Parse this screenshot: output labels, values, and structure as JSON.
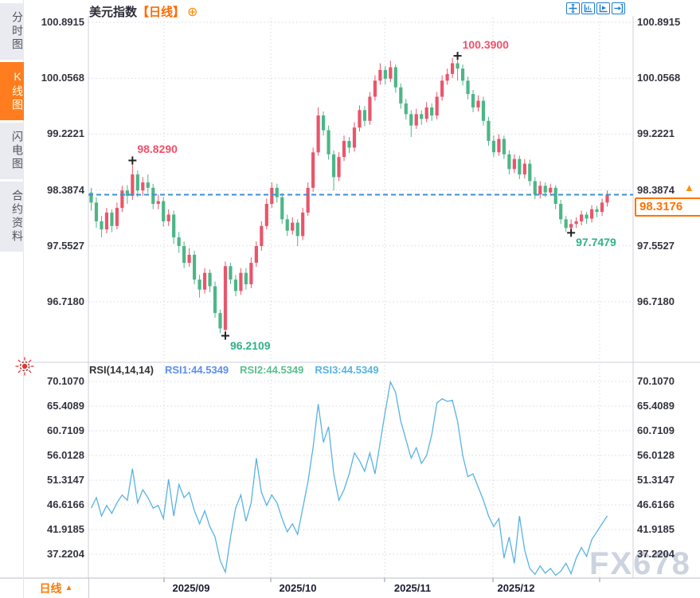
{
  "sidebar": {
    "items": [
      {
        "label": "分时图",
        "selected": false
      },
      {
        "label": "K线图",
        "selected": true
      },
      {
        "label": "闪电图",
        "selected": false
      },
      {
        "label": "合约资料",
        "selected": false
      }
    ]
  },
  "header": {
    "title": "美元指数",
    "period_tag": "【日线】",
    "add_icon": "⊕"
  },
  "toolbar": {
    "icons": [
      "crosshair-move",
      "axis-range",
      "axis-play",
      "pane-exit"
    ]
  },
  "main_chart": {
    "y_axis_labels": [
      "100.8915",
      "100.0568",
      "99.2221",
      "98.3874",
      "97.5527",
      "96.7180"
    ],
    "last_price": "98.3176",
    "axis_arrow": "▲",
    "ref_line_color": "#3e8ed8",
    "annotations": [
      {
        "text": "98.8290",
        "price": 98.829,
        "candle": 8,
        "color": "#f2506a",
        "side": "above"
      },
      {
        "text": "100.3900",
        "price": 100.39,
        "candle": 71,
        "color": "#f2506a",
        "side": "above"
      },
      {
        "text": "96.2109",
        "price": 96.2109,
        "candle": 26,
        "color": "#2fb286",
        "side": "below"
      },
      {
        "text": "97.7479",
        "price": 97.7479,
        "candle": 93,
        "color": "#2fb286",
        "side": "below"
      }
    ]
  },
  "rsi_panel": {
    "header_label": "RSI(14,14,14)",
    "series_labels": [
      {
        "text": "RSI1:44.5349",
        "color": "#5b8df0"
      },
      {
        "text": "RSI2:44.5349",
        "color": "#58c08d"
      },
      {
        "text": "RSI3:44.5349",
        "color": "#54b4e4"
      }
    ],
    "y_axis_labels": [
      "70.1070",
      "65.4089",
      "60.7109",
      "56.0128",
      "51.3147",
      "46.6166",
      "41.9185",
      "37.2204"
    ]
  },
  "bottom_bar": {
    "period_label": "日线",
    "arrow": "▲",
    "x_axis_labels": [
      "2025/09",
      "2025/10",
      "2025/11",
      "2025/12"
    ]
  },
  "watermark": "FX678",
  "chart_data": [
    {
      "type": "candlestick",
      "title": "美元指数 日线",
      "y_ticks": [
        "100.8915",
        "100.0568",
        "99.2221",
        "98.3874",
        "97.5527",
        "96.7180"
      ],
      "x_tick_labels": [
        "2025/09",
        "2025/10",
        "2025/11",
        "2025/12"
      ],
      "up_color": "#e8566b",
      "down_color": "#4db687",
      "last_close": 98.3176,
      "high_label": 100.39,
      "low_label": 96.2109,
      "candles": [
        [
          98.35,
          98.42,
          98.08,
          98.2
        ],
        [
          98.2,
          98.28,
          97.82,
          97.92
        ],
        [
          97.92,
          98.0,
          97.68,
          97.8
        ],
        [
          97.8,
          98.12,
          97.74,
          98.05
        ],
        [
          98.05,
          98.1,
          97.76,
          97.85
        ],
        [
          97.85,
          98.2,
          97.8,
          98.12
        ],
        [
          98.12,
          98.45,
          98.06,
          98.38
        ],
        [
          98.38,
          98.46,
          98.18,
          98.3
        ],
        [
          98.3,
          98.829,
          98.24,
          98.62
        ],
        [
          98.62,
          98.68,
          98.28,
          98.38
        ],
        [
          98.38,
          98.58,
          98.3,
          98.5
        ],
        [
          98.5,
          98.62,
          98.34,
          98.42
        ],
        [
          98.42,
          98.48,
          98.1,
          98.18
        ],
        [
          98.18,
          98.32,
          98.1,
          98.22
        ],
        [
          98.22,
          98.28,
          97.84,
          97.92
        ],
        [
          97.92,
          98.1,
          97.85,
          98.02
        ],
        [
          98.02,
          98.08,
          97.58,
          97.68
        ],
        [
          97.68,
          97.76,
          97.45,
          97.55
        ],
        [
          97.55,
          97.62,
          97.22,
          97.3
        ],
        [
          97.3,
          97.52,
          97.24,
          97.42
        ],
        [
          97.42,
          97.48,
          96.98,
          97.05
        ],
        [
          97.05,
          97.12,
          96.78,
          96.9
        ],
        [
          96.9,
          97.22,
          96.84,
          97.15
        ],
        [
          97.15,
          97.2,
          96.86,
          96.95
        ],
        [
          96.95,
          97.02,
          96.48,
          96.55
        ],
        [
          96.55,
          96.6,
          96.25,
          96.32
        ],
        [
          96.3,
          97.32,
          96.2109,
          97.25
        ],
        [
          97.25,
          97.3,
          96.98,
          97.05
        ],
        [
          97.05,
          97.12,
          96.8,
          96.88
        ],
        [
          96.88,
          97.22,
          96.82,
          97.15
        ],
        [
          97.15,
          97.22,
          96.9,
          96.98
        ],
        [
          96.98,
          97.38,
          96.92,
          97.3
        ],
        [
          97.3,
          97.62,
          97.24,
          97.55
        ],
        [
          97.55,
          97.92,
          97.48,
          97.85
        ],
        [
          97.85,
          98.26,
          97.8,
          98.18
        ],
        [
          98.18,
          98.5,
          98.12,
          98.42
        ],
        [
          98.42,
          98.48,
          98.2,
          98.28
        ],
        [
          98.28,
          98.34,
          97.88,
          97.95
        ],
        [
          97.95,
          98.02,
          97.7,
          97.78
        ],
        [
          97.78,
          97.98,
          97.72,
          97.9
        ],
        [
          97.9,
          97.95,
          97.55,
          97.7
        ],
        [
          97.7,
          98.12,
          97.64,
          98.05
        ],
        [
          98.05,
          98.5,
          98.0,
          98.42
        ],
        [
          98.42,
          99.02,
          98.36,
          98.95
        ],
        [
          98.95,
          99.62,
          98.9,
          99.5
        ],
        [
          99.5,
          99.56,
          99.2,
          99.28
        ],
        [
          99.28,
          99.35,
          98.84,
          98.92
        ],
        [
          98.92,
          98.98,
          98.38,
          98.58
        ],
        [
          98.58,
          98.95,
          98.52,
          98.88
        ],
        [
          98.88,
          99.2,
          98.82,
          99.12
        ],
        [
          99.12,
          99.18,
          98.94,
          99.02
        ],
        [
          99.02,
          99.4,
          98.96,
          99.32
        ],
        [
          99.32,
          99.65,
          99.26,
          99.58
        ],
        [
          99.58,
          99.64,
          99.34,
          99.42
        ],
        [
          99.42,
          99.85,
          99.36,
          99.78
        ],
        [
          99.78,
          100.1,
          99.72,
          100.02
        ],
        [
          100.02,
          100.28,
          99.96,
          100.18
        ],
        [
          100.18,
          100.24,
          99.96,
          100.05
        ],
        [
          100.05,
          100.32,
          100.0,
          100.22
        ],
        [
          100.22,
          100.26,
          99.84,
          99.92
        ],
        [
          99.92,
          99.98,
          99.6,
          99.68
        ],
        [
          99.68,
          99.75,
          99.44,
          99.52
        ],
        [
          99.52,
          99.58,
          99.18,
          99.35
        ],
        [
          99.35,
          99.6,
          99.3,
          99.52
        ],
        [
          99.52,
          99.58,
          99.36,
          99.45
        ],
        [
          99.45,
          99.7,
          99.4,
          99.62
        ],
        [
          99.62,
          99.68,
          99.42,
          99.5
        ],
        [
          99.5,
          99.85,
          99.44,
          99.78
        ],
        [
          99.78,
          100.1,
          99.72,
          100.02
        ],
        [
          100.02,
          100.2,
          99.96,
          100.12
        ],
        [
          100.12,
          100.36,
          100.06,
          100.28
        ],
        [
          100.28,
          100.39,
          100.02,
          100.2
        ],
        [
          100.2,
          100.26,
          99.95,
          100.02
        ],
        [
          100.02,
          100.08,
          99.74,
          99.82
        ],
        [
          99.82,
          99.88,
          99.55,
          99.62
        ],
        [
          99.62,
          99.8,
          99.56,
          99.72
        ],
        [
          99.72,
          99.78,
          99.35,
          99.42
        ],
        [
          99.42,
          99.48,
          99.05,
          99.12
        ],
        [
          99.12,
          99.2,
          98.88,
          98.95
        ],
        [
          98.95,
          99.22,
          98.9,
          99.15
        ],
        [
          99.15,
          99.2,
          98.85,
          98.92
        ],
        [
          98.92,
          98.98,
          98.62,
          98.7
        ],
        [
          98.7,
          98.92,
          98.64,
          98.85
        ],
        [
          98.85,
          98.9,
          98.55,
          98.62
        ],
        [
          98.62,
          98.85,
          98.56,
          98.78
        ],
        [
          98.78,
          98.84,
          98.45,
          98.52
        ],
        [
          98.52,
          98.58,
          98.25,
          98.32
        ],
        [
          98.32,
          98.52,
          98.26,
          98.45
        ],
        [
          98.45,
          98.5,
          98.28,
          98.35
        ],
        [
          98.35,
          98.48,
          98.3,
          98.42
        ],
        [
          98.42,
          98.46,
          98.1,
          98.18
        ],
        [
          98.18,
          98.24,
          97.88,
          97.95
        ],
        [
          97.95,
          98.0,
          97.76,
          97.82
        ],
        [
          97.82,
          97.95,
          97.7479,
          97.88
        ],
        [
          97.88,
          97.98,
          97.82,
          97.92
        ],
        [
          97.92,
          98.08,
          97.86,
          98.02
        ],
        [
          98.02,
          98.06,
          97.88,
          97.96
        ],
        [
          97.96,
          98.16,
          97.9,
          98.1
        ],
        [
          98.1,
          98.15,
          97.98,
          98.06
        ],
        [
          98.06,
          98.26,
          98.0,
          98.2
        ],
        [
          98.2,
          98.38,
          98.14,
          98.3176
        ]
      ]
    },
    {
      "type": "line",
      "name": "RSI(14,14,14)",
      "series": [
        {
          "name": "RSI1",
          "last": 44.5349
        },
        {
          "name": "RSI2",
          "last": 44.5349
        },
        {
          "name": "RSI3",
          "last": 44.5349
        }
      ],
      "line_color": "#59b2e2",
      "y_ticks": [
        70.107,
        65.4089,
        60.7109,
        56.0128,
        51.3147,
        46.6166,
        41.9185,
        37.2204
      ],
      "values": [
        46.0,
        48.0,
        44.5,
        46.5,
        45.0,
        47.0,
        48.5,
        47.5,
        53.5,
        47.0,
        49.5,
        48.0,
        46.0,
        46.5,
        44.0,
        51.5,
        44.5,
        50.5,
        48.0,
        49.0,
        45.5,
        43.0,
        45.5,
        42.5,
        40.5,
        36.0,
        33.8,
        40.5,
        46.0,
        48.5,
        43.5,
        47.0,
        55.5,
        49.0,
        46.5,
        48.5,
        47.0,
        44.0,
        41.5,
        43.0,
        41.0,
        46.0,
        51.0,
        57.5,
        65.8,
        58.5,
        61.5,
        52.5,
        47.5,
        49.5,
        52.5,
        56.5,
        55.0,
        53.0,
        56.5,
        52.5,
        58.5,
        64.5,
        70.0,
        68.0,
        62.5,
        59.0,
        55.5,
        57.5,
        54.5,
        56.0,
        60.0,
        66.0,
        66.8,
        66.3,
        66.5,
        62.5,
        56.0,
        52.0,
        52.5,
        50.0,
        47.5,
        44.5,
        42.5,
        44.0,
        36.5,
        40.5,
        35.5,
        44.5,
        38.0,
        34.5,
        33.4,
        35.0,
        33.6,
        34.5,
        33.2,
        34.0,
        35.5,
        33.5,
        36.5,
        38.5,
        36.8,
        40.0,
        41.5,
        43.0,
        44.53
      ]
    }
  ]
}
